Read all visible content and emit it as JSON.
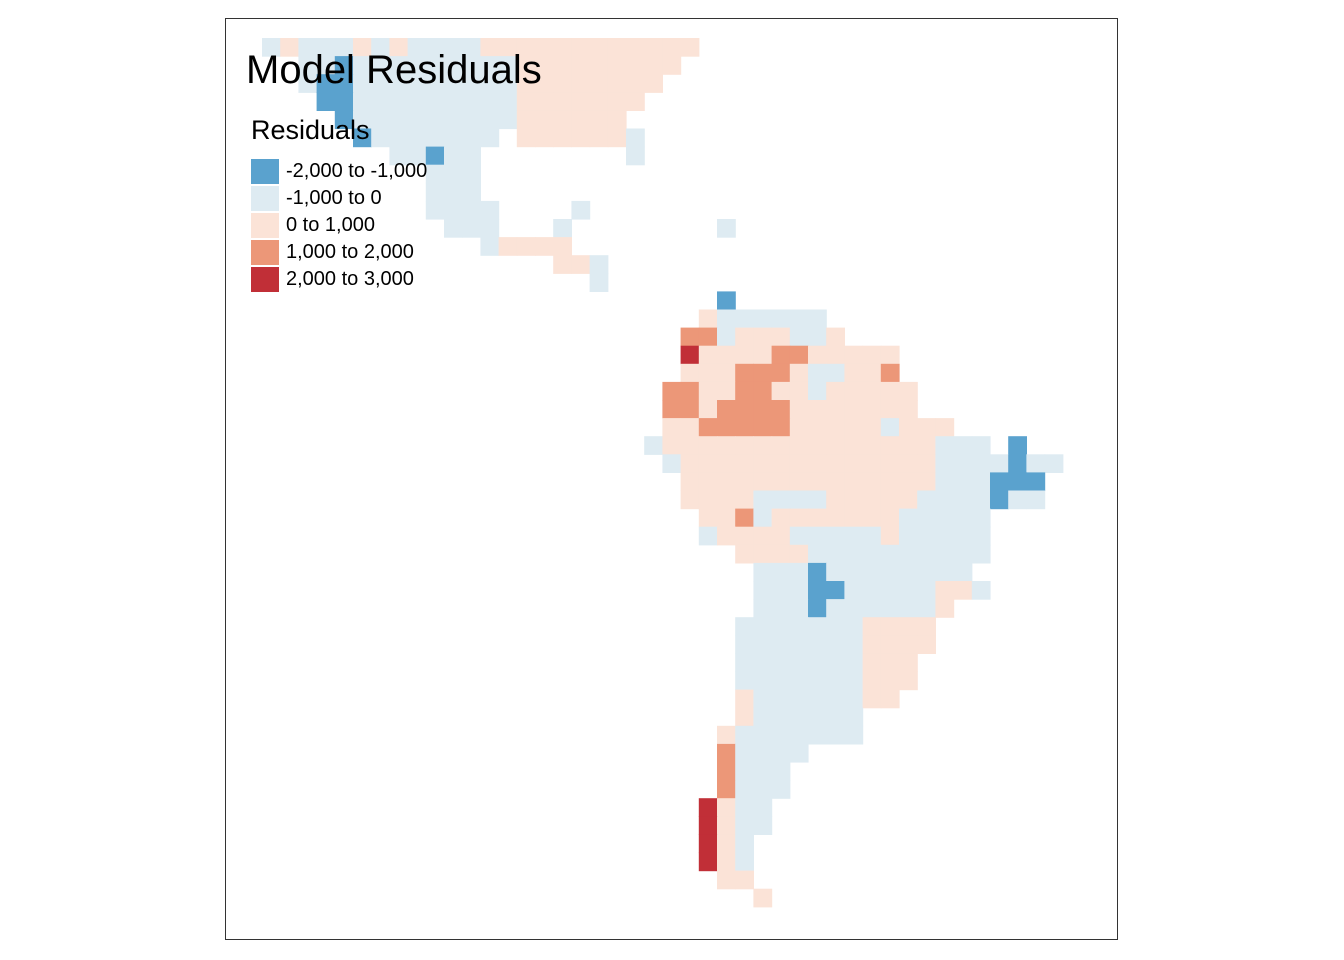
{
  "title": "Model Residuals",
  "legend": {
    "title": "Residuals",
    "items": [
      {
        "label": "-2,000 to -1,000",
        "color": "#5aa2ce",
        "class": "c1"
      },
      {
        "label": "-1,000 to 0",
        "color": "#deebf2",
        "class": "c2"
      },
      {
        "label": "0 to 1,000",
        "color": "#fbe3d7",
        "class": "c3"
      },
      {
        "label": "1,000 to 2,000",
        "color": "#ec9778",
        "class": "c4"
      },
      {
        "label": "2,000 to 3,000",
        "color": "#c12f37",
        "class": "c5"
      }
    ]
  }
}
